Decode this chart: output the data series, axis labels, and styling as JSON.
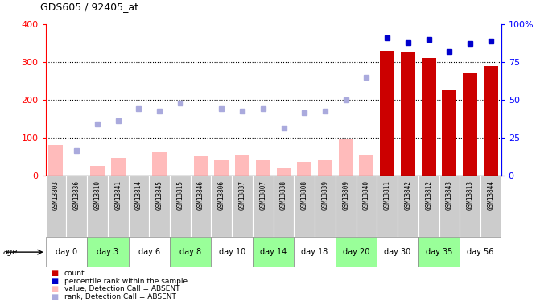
{
  "title": "GDS605 / 92405_at",
  "samples": [
    "GSM13803",
    "GSM13836",
    "GSM13810",
    "GSM13841",
    "GSM13814",
    "GSM13845",
    "GSM13815",
    "GSM13846",
    "GSM13806",
    "GSM13837",
    "GSM13807",
    "GSM13838",
    "GSM13808",
    "GSM13839",
    "GSM13809",
    "GSM13840",
    "GSM13811",
    "GSM13842",
    "GSM13812",
    "GSM13843",
    "GSM13813",
    "GSM13844"
  ],
  "days": [
    "day 0",
    "day 0",
    "day 3",
    "day 3",
    "day 6",
    "day 6",
    "day 8",
    "day 8",
    "day 10",
    "day 10",
    "day 14",
    "day 14",
    "day 18",
    "day 18",
    "day 20",
    "day 20",
    "day 30",
    "day 30",
    "day 35",
    "day 35",
    "day 56",
    "day 56"
  ],
  "day_groups": [
    {
      "label": "day 0",
      "start": 0,
      "end": 1,
      "green": false
    },
    {
      "label": "day 3",
      "start": 2,
      "end": 3,
      "green": true
    },
    {
      "label": "day 6",
      "start": 4,
      "end": 5,
      "green": false
    },
    {
      "label": "day 8",
      "start": 6,
      "end": 7,
      "green": true
    },
    {
      "label": "day 10",
      "start": 8,
      "end": 9,
      "green": false
    },
    {
      "label": "day 14",
      "start": 10,
      "end": 11,
      "green": true
    },
    {
      "label": "day 18",
      "start": 12,
      "end": 13,
      "green": false
    },
    {
      "label": "day 20",
      "start": 14,
      "end": 15,
      "green": true
    },
    {
      "label": "day 30",
      "start": 16,
      "end": 17,
      "green": false
    },
    {
      "label": "day 35",
      "start": 18,
      "end": 19,
      "green": true
    },
    {
      "label": "day 56",
      "start": 20,
      "end": 21,
      "green": false
    }
  ],
  "count_values": [
    null,
    null,
    null,
    null,
    null,
    null,
    null,
    null,
    null,
    null,
    null,
    null,
    null,
    null,
    null,
    null,
    330,
    325,
    310,
    225,
    270,
    290
  ],
  "percentile_values": [
    null,
    null,
    null,
    null,
    null,
    null,
    null,
    null,
    null,
    null,
    null,
    null,
    null,
    null,
    null,
    null,
    91,
    88,
    90,
    82,
    87,
    89
  ],
  "value_absent": [
    80,
    null,
    25,
    45,
    null,
    60,
    null,
    50,
    40,
    55,
    40,
    20,
    35,
    40,
    95,
    55,
    null,
    null,
    null,
    null,
    null,
    null
  ],
  "rank_absent": [
    null,
    65,
    135,
    145,
    175,
    170,
    190,
    null,
    175,
    170,
    175,
    125,
    165,
    170,
    200,
    260,
    null,
    null,
    null,
    null,
    null,
    null
  ],
  "ylim_left": [
    0,
    400
  ],
  "ylim_right": [
    0,
    100
  ],
  "bar_color": "#cc0000",
  "percentile_color": "#0000cc",
  "value_absent_color": "#ffbbbb",
  "rank_absent_color": "#aaaadd",
  "bg_color": "#ffffff",
  "green_color": "#99ff99",
  "white_color": "#ffffff",
  "gsm_bg": "#cccccc",
  "legend_items": [
    {
      "color": "#cc0000",
      "label": "count"
    },
    {
      "color": "#0000cc",
      "label": "percentile rank within the sample"
    },
    {
      "color": "#ffbbbb",
      "label": "value, Detection Call = ABSENT"
    },
    {
      "color": "#aaaadd",
      "label": "rank, Detection Call = ABSENT"
    }
  ]
}
